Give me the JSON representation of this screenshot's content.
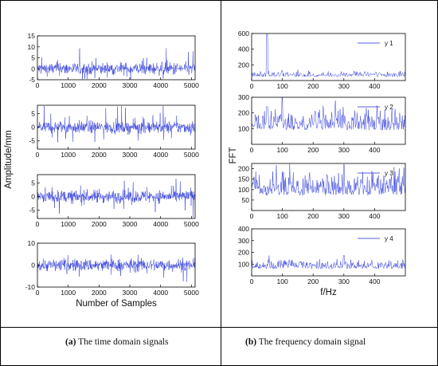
{
  "captions": {
    "left_label": "(a)",
    "left_text": " The time domain signals",
    "right_label": "(b)",
    "right_text": " The frequency domain signal"
  },
  "colors": {
    "signal": "#1f2bd6",
    "axis": "#000000",
    "border": "#000000"
  },
  "chart_data": [
    {
      "type": "line",
      "panel": "time-1",
      "xlim": [
        0,
        5120
      ],
      "ylim": [
        -5,
        15
      ],
      "xticks": [
        0,
        1000,
        2000,
        3000,
        4000,
        5000
      ],
      "yticks": [
        -5,
        0,
        5,
        10,
        15
      ],
      "xlabel": "",
      "ylabel": "",
      "series": [
        {
          "values": []
        }
      ]
    },
    {
      "type": "line",
      "panel": "time-2",
      "xlim": [
        0,
        5120
      ],
      "ylim": [
        -8,
        8
      ],
      "xticks": [
        0,
        1000,
        2000,
        3000,
        4000,
        5000
      ],
      "yticks": [
        -5,
        0,
        5
      ],
      "xlabel": "",
      "ylabel": "Amplitude/mm",
      "series": [
        {
          "values": []
        }
      ]
    },
    {
      "type": "line",
      "panel": "time-3",
      "xlim": [
        0,
        5120
      ],
      "ylim": [
        -8,
        8
      ],
      "xticks": [
        0,
        1000,
        2000,
        3000,
        4000,
        5000
      ],
      "yticks": [
        -5,
        0,
        5
      ],
      "xlabel": "",
      "ylabel": "",
      "series": [
        {
          "values": []
        }
      ]
    },
    {
      "type": "line",
      "panel": "time-4",
      "xlim": [
        0,
        5120
      ],
      "ylim": [
        -10,
        10
      ],
      "xticks": [
        0,
        1000,
        2000,
        3000,
        4000,
        5000
      ],
      "yticks": [
        -10,
        0,
        10
      ],
      "xlabel": "Number of Samples",
      "ylabel": "",
      "series": [
        {
          "values": []
        }
      ]
    },
    {
      "type": "line",
      "panel": "freq-1",
      "xlim": [
        0,
        500
      ],
      "ylim": [
        0,
        600
      ],
      "xticks": [
        0,
        100,
        200,
        300,
        400
      ],
      "yticks": [
        200,
        400,
        600
      ],
      "xlabel": "",
      "ylabel": "",
      "legend": "y 1",
      "peaks": [
        {
          "x": 50,
          "y": 590
        },
        {
          "x": 100,
          "y": 130
        }
      ],
      "series": [
        {
          "name": "y 1",
          "values": []
        }
      ]
    },
    {
      "type": "line",
      "panel": "freq-2",
      "xlim": [
        0,
        500
      ],
      "ylim": [
        0,
        300
      ],
      "xticks": [
        0,
        100,
        200,
        300,
        400
      ],
      "yticks": [
        100,
        200,
        300
      ],
      "xlabel": "",
      "ylabel": "FFT",
      "legend": "y 2",
      "peaks": [
        {
          "x": 50,
          "y": 240
        },
        {
          "x": 100,
          "y": 305
        },
        {
          "x": 375,
          "y": 180
        }
      ],
      "series": [
        {
          "name": "y 2",
          "values": []
        }
      ]
    },
    {
      "type": "line",
      "panel": "freq-3",
      "xlim": [
        0,
        500
      ],
      "ylim": [
        0,
        225
      ],
      "xticks": [
        0,
        100,
        200,
        300,
        400
      ],
      "yticks": [
        50,
        100,
        150,
        200
      ],
      "xlabel": "",
      "ylabel": "",
      "legend": "y 3",
      "peaks": [
        {
          "x": 300,
          "y": 220
        }
      ],
      "series": [
        {
          "name": "y 3",
          "values": []
        }
      ]
    },
    {
      "type": "line",
      "panel": "freq-4",
      "xlim": [
        0,
        500
      ],
      "ylim": [
        0,
        400
      ],
      "xticks": [
        0,
        100,
        200,
        300,
        400
      ],
      "yticks": [
        100,
        200,
        300,
        400
      ],
      "xlabel": "f/Hz",
      "ylabel": "",
      "legend": "y 4",
      "peaks": [
        {
          "x": 300,
          "y": 175
        }
      ],
      "series": [
        {
          "name": "y 4",
          "values": []
        }
      ]
    }
  ]
}
